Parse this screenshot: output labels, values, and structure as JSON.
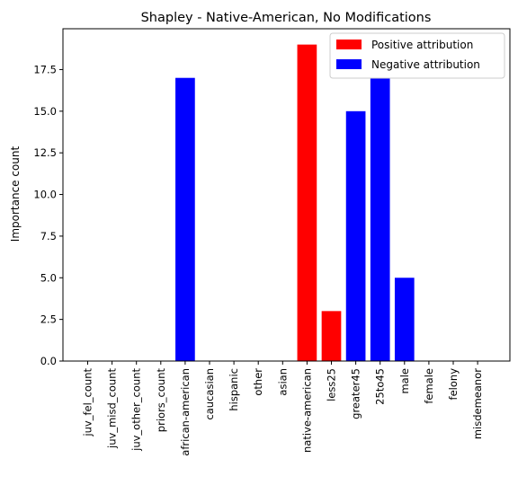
{
  "chart_data": {
    "type": "bar",
    "title": "Shapley - Native-American, No Modifications",
    "xlabel": "",
    "ylabel": "Importance count",
    "ylim": [
      0,
      19.95
    ],
    "yticks": [
      0.0,
      2.5,
      5.0,
      7.5,
      10.0,
      12.5,
      15.0,
      17.5
    ],
    "ytick_labels": [
      "0.0",
      "2.5",
      "5.0",
      "7.5",
      "10.0",
      "12.5",
      "15.0",
      "17.5"
    ],
    "categories": [
      "juv_fel_count",
      "juv_misd_count",
      "juv_other_count",
      "priors_count",
      "african-american",
      "caucasian",
      "hispanic",
      "other",
      "asian",
      "native-american",
      "less25",
      "greater45",
      "25to45",
      "male",
      "female",
      "felony",
      "misdemeanor"
    ],
    "values": [
      0,
      0,
      0,
      0,
      17,
      0,
      0,
      0,
      0,
      19,
      3,
      15,
      17,
      5,
      0,
      0,
      0
    ],
    "bar_sign": [
      "none",
      "none",
      "none",
      "none",
      "negative",
      "none",
      "none",
      "none",
      "none",
      "positive",
      "positive",
      "negative",
      "negative",
      "negative",
      "none",
      "none",
      "none"
    ],
    "legend": {
      "placement": "top-right",
      "entries": [
        {
          "label": "Positive attribution",
          "color": "#ff0000"
        },
        {
          "label": "Negative attribution",
          "color": "#0000ff"
        }
      ]
    },
    "colors": {
      "positive": "#ff0000",
      "negative": "#0000ff"
    },
    "grid": false
  }
}
